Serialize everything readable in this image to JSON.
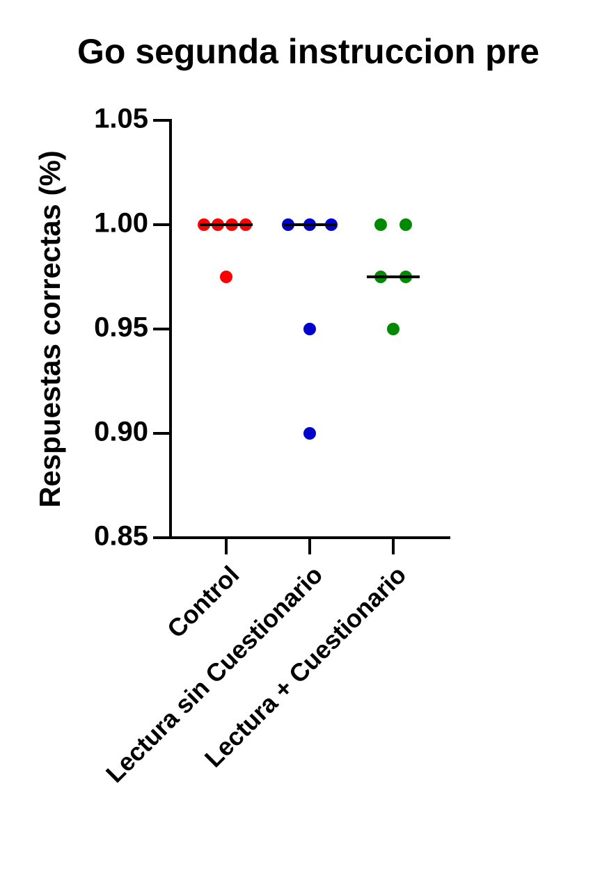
{
  "chart_data": {
    "type": "dot",
    "title": "Go segunda instruccion pre",
    "y_label": "Respuestas correctas (%)",
    "categories": [
      "Control",
      "Lectura sin Cuestionario",
      "Lectura + Cuestionario"
    ],
    "colors": [
      "#ff0000",
      "#0000cc",
      "#008a00"
    ],
    "values": [
      [
        1.0,
        1.0,
        1.0,
        1.0,
        0.975
      ],
      [
        1.0,
        1.0,
        1.0,
        0.95,
        0.9
      ],
      [
        1.0,
        1.0,
        0.975,
        0.975,
        0.95
      ]
    ],
    "medians": [
      1.0,
      1.0,
      0.975
    ],
    "ylim": [
      0.85,
      1.05
    ],
    "yticks": [
      {
        "value": 0.85,
        "label": "0.85"
      },
      {
        "value": 0.9,
        "label": "0.90"
      },
      {
        "value": 0.95,
        "label": "0.95"
      },
      {
        "value": 1.0,
        "label": "1.00"
      },
      {
        "value": 1.05,
        "label": "1.05"
      }
    ]
  }
}
